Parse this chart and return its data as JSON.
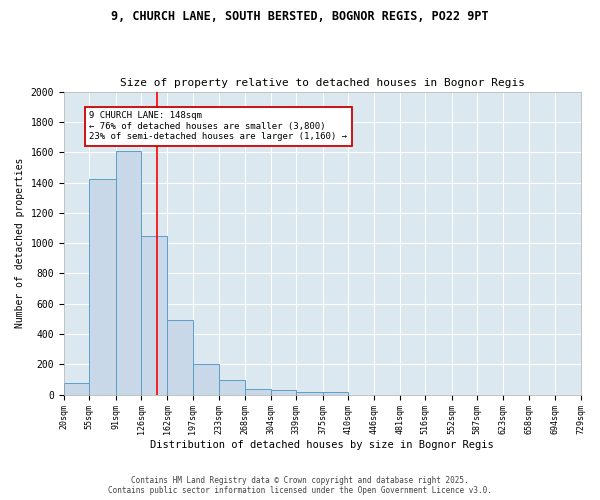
{
  "title1": "9, CHURCH LANE, SOUTH BERSTED, BOGNOR REGIS, PO22 9PT",
  "title2": "Size of property relative to detached houses in Bognor Regis",
  "xlabel": "Distribution of detached houses by size in Bognor Regis",
  "ylabel": "Number of detached properties",
  "bin_edges": [
    20,
    55,
    91,
    126,
    162,
    197,
    233,
    268,
    304,
    339,
    375,
    410,
    446,
    481,
    516,
    552,
    587,
    623,
    658,
    694,
    729
  ],
  "counts": [
    80,
    1420,
    1610,
    1050,
    490,
    205,
    100,
    40,
    30,
    20,
    15,
    0,
    0,
    0,
    0,
    0,
    0,
    0,
    0,
    0
  ],
  "bar_color": "#c8d8e8",
  "bar_edge_color": "#5a9ec8",
  "red_line_x": 148,
  "annotation_text": "9 CHURCH LANE: 148sqm\n← 76% of detached houses are smaller (3,800)\n23% of semi-detached houses are larger (1,160) →",
  "annotation_box_color": "#ffffff",
  "annotation_box_edge_color": "#cc0000",
  "footer1": "Contains HM Land Registry data © Crown copyright and database right 2025.",
  "footer2": "Contains public sector information licensed under the Open Government Licence v3.0.",
  "ylim": [
    0,
    2000
  ],
  "yticks": [
    0,
    200,
    400,
    600,
    800,
    1000,
    1200,
    1400,
    1600,
    1800,
    2000
  ],
  "background_color": "#dce8f0",
  "grid_color": "#ffffff",
  "fig_bg": "#ffffff"
}
